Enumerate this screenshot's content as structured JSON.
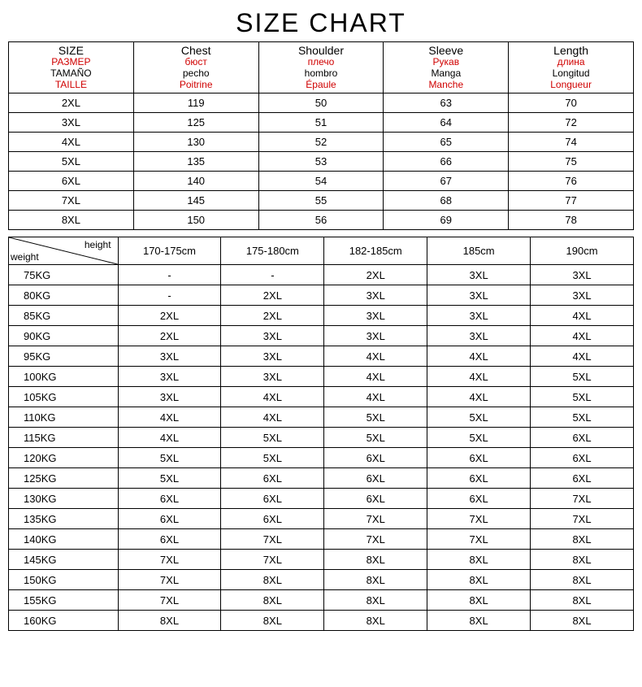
{
  "title": "SIZE CHART",
  "colors": {
    "text": "#000000",
    "accent": "#d00000",
    "border": "#000000",
    "background": "#ffffff"
  },
  "typography": {
    "title_fontsize": 32,
    "header_fontsize": 14,
    "sub_fontsize": 12,
    "cell_fontsize": 13,
    "font_family": "Arial"
  },
  "measurements": {
    "headers": [
      {
        "main": "SIZE",
        "ru": "РАЗМЕР",
        "es": "TAMAÑO",
        "fr": "TAILLE"
      },
      {
        "main": "Chest",
        "ru": "бюст",
        "es": "pecho",
        "fr": "Poitrine"
      },
      {
        "main": "Shoulder",
        "ru": "плечо",
        "es": "hombro",
        "fr": "Épaule"
      },
      {
        "main": "Sleeve",
        "ru": "Рукав",
        "es": "Manga",
        "fr": "Manche"
      },
      {
        "main": "Length",
        "ru": "длина",
        "es": "Longitud",
        "fr": "Longueur"
      }
    ],
    "rows": [
      {
        "size": "2XL",
        "chest": "119",
        "shoulder": "50",
        "sleeve": "63",
        "length": "70"
      },
      {
        "size": "3XL",
        "chest": "125",
        "shoulder": "51",
        "sleeve": "64",
        "length": "72"
      },
      {
        "size": "4XL",
        "chest": "130",
        "shoulder": "52",
        "sleeve": "65",
        "length": "74"
      },
      {
        "size": "5XL",
        "chest": "135",
        "shoulder": "53",
        "sleeve": "66",
        "length": "75"
      },
      {
        "size": "6XL",
        "chest": "140",
        "shoulder": "54",
        "sleeve": "67",
        "length": "76"
      },
      {
        "size": "7XL",
        "chest": "145",
        "shoulder": "55",
        "sleeve": "68",
        "length": "77"
      },
      {
        "size": "8XL",
        "chest": "150",
        "shoulder": "56",
        "sleeve": "69",
        "length": "78"
      }
    ]
  },
  "recommendation": {
    "axis_height_label": "height",
    "axis_weight_label": "weight",
    "heights": [
      "170-175cm",
      "175-180cm",
      "182-185cm",
      "185cm",
      "190cm"
    ],
    "rows": [
      {
        "weight": "75KG",
        "sizes": [
          "-",
          "-",
          "2XL",
          "3XL",
          "3XL"
        ]
      },
      {
        "weight": "80KG",
        "sizes": [
          "-",
          "2XL",
          "3XL",
          "3XL",
          "3XL"
        ]
      },
      {
        "weight": "85KG",
        "sizes": [
          "2XL",
          "2XL",
          "3XL",
          "3XL",
          "4XL"
        ]
      },
      {
        "weight": "90KG",
        "sizes": [
          "2XL",
          "3XL",
          "3XL",
          "3XL",
          "4XL"
        ]
      },
      {
        "weight": "95KG",
        "sizes": [
          "3XL",
          "3XL",
          "4XL",
          "4XL",
          "4XL"
        ]
      },
      {
        "weight": "100KG",
        "sizes": [
          "3XL",
          "3XL",
          "4XL",
          "4XL",
          "5XL"
        ]
      },
      {
        "weight": "105KG",
        "sizes": [
          "3XL",
          "4XL",
          "4XL",
          "4XL",
          "5XL"
        ]
      },
      {
        "weight": "110KG",
        "sizes": [
          "4XL",
          "4XL",
          "5XL",
          "5XL",
          "5XL"
        ]
      },
      {
        "weight": "115KG",
        "sizes": [
          "4XL",
          "5XL",
          "5XL",
          "5XL",
          "6XL"
        ]
      },
      {
        "weight": "120KG",
        "sizes": [
          "5XL",
          "5XL",
          "6XL",
          "6XL",
          "6XL"
        ]
      },
      {
        "weight": "125KG",
        "sizes": [
          "5XL",
          "6XL",
          "6XL",
          "6XL",
          "6XL"
        ]
      },
      {
        "weight": "130KG",
        "sizes": [
          "6XL",
          "6XL",
          "6XL",
          "6XL",
          "7XL"
        ]
      },
      {
        "weight": "135KG",
        "sizes": [
          "6XL",
          "6XL",
          "7XL",
          "7XL",
          "7XL"
        ]
      },
      {
        "weight": "140KG",
        "sizes": [
          "6XL",
          "7XL",
          "7XL",
          "7XL",
          "8XL"
        ]
      },
      {
        "weight": "145KG",
        "sizes": [
          "7XL",
          "7XL",
          "8XL",
          "8XL",
          "8XL"
        ]
      },
      {
        "weight": "150KG",
        "sizes": [
          "7XL",
          "8XL",
          "8XL",
          "8XL",
          "8XL"
        ]
      },
      {
        "weight": "155KG",
        "sizes": [
          "7XL",
          "8XL",
          "8XL",
          "8XL",
          "8XL"
        ]
      },
      {
        "weight": "160KG",
        "sizes": [
          "8XL",
          "8XL",
          "8XL",
          "8XL",
          "8XL"
        ]
      }
    ]
  }
}
